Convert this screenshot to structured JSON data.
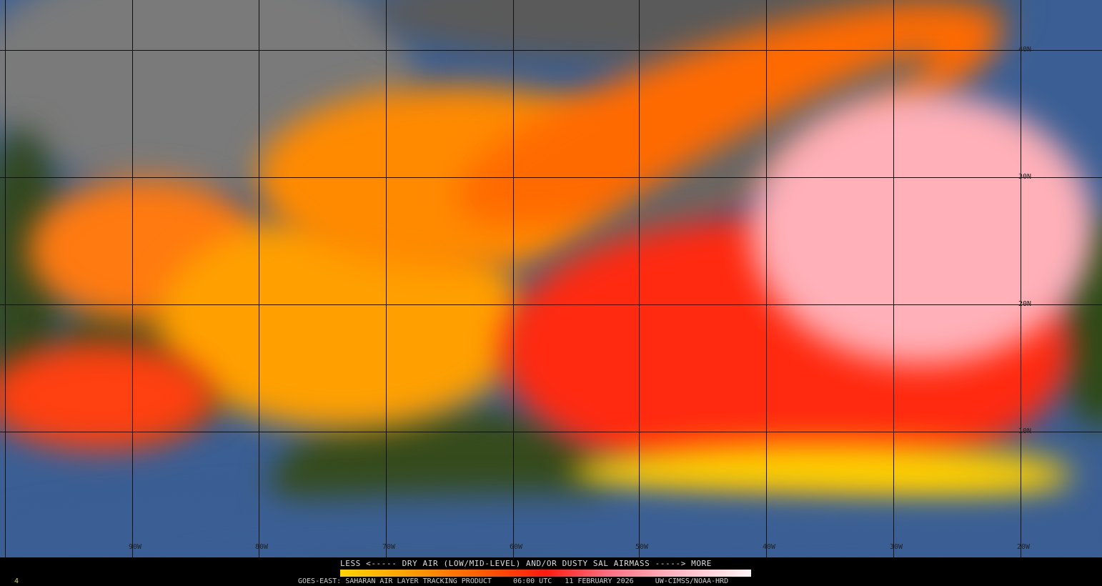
{
  "map": {
    "latitude_labels": [
      "40N",
      "30N",
      "20N",
      "10N"
    ],
    "longitude_labels": [
      "90W",
      "80W",
      "70W",
      "60W",
      "50W",
      "40W",
      "30W",
      "20W"
    ]
  },
  "legend": {
    "title": "LESS <----- DRY AIR (LOW/MID-LEVEL) AND/OR DUSTY SAL AIRMASS -----> MORE",
    "colorscale": [
      "#ffd400",
      "#ff9a00",
      "#ff5a00",
      "#ff1a10",
      "#ff6e80",
      "#ffb0bc",
      "#fff4f8"
    ]
  },
  "footer": {
    "product": "GOES-EAST: SAHARAN AIR LAYER TRACKING PRODUCT",
    "time": "06:00 UTC",
    "date": "11 FEBRUARY 2026",
    "source": "UW-CIMSS/NOAA-HRD",
    "frame": "4"
  }
}
